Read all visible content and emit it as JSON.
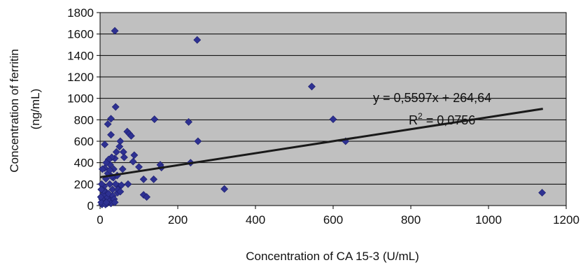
{
  "chart_data": {
    "type": "scatter",
    "xlabel": "Concentration of CA 15-3 (U/mL)",
    "ylabel_lines": [
      "Concentration of ferritin",
      "(ng/mL)"
    ],
    "xlim": [
      0,
      1200
    ],
    "ylim": [
      0,
      1800
    ],
    "x_ticks": [
      "0",
      "200",
      "400",
      "600",
      "800",
      "1000",
      "1200"
    ],
    "y_ticks": [
      "0",
      "200",
      "400",
      "600",
      "800",
      "1000",
      "1200",
      "1400",
      "1600",
      "1800"
    ],
    "grid": true,
    "marker_color": "#2e3192",
    "plot_bg": "#c0c0c0",
    "points": [
      {
        "x": 38,
        "y": 1630
      },
      {
        "x": 250,
        "y": 1545
      },
      {
        "x": 545,
        "y": 1110
      },
      {
        "x": 600,
        "y": 805
      },
      {
        "x": 632,
        "y": 600
      },
      {
        "x": 1138,
        "y": 120
      },
      {
        "x": 320,
        "y": 155
      },
      {
        "x": 252,
        "y": 600
      },
      {
        "x": 228,
        "y": 780
      },
      {
        "x": 233,
        "y": 400
      },
      {
        "x": 140,
        "y": 805
      },
      {
        "x": 155,
        "y": 380
      },
      {
        "x": 158,
        "y": 355
      },
      {
        "x": 138,
        "y": 245
      },
      {
        "x": 112,
        "y": 245
      },
      {
        "x": 112,
        "y": 100
      },
      {
        "x": 120,
        "y": 80
      },
      {
        "x": 100,
        "y": 360
      },
      {
        "x": 88,
        "y": 470
      },
      {
        "x": 85,
        "y": 410
      },
      {
        "x": 72,
        "y": 200
      },
      {
        "x": 70,
        "y": 690
      },
      {
        "x": 75,
        "y": 670
      },
      {
        "x": 80,
        "y": 650
      },
      {
        "x": 60,
        "y": 500
      },
      {
        "x": 62,
        "y": 450
      },
      {
        "x": 58,
        "y": 340
      },
      {
        "x": 52,
        "y": 600
      },
      {
        "x": 50,
        "y": 550
      },
      {
        "x": 48,
        "y": 180
      },
      {
        "x": 45,
        "y": 120
      },
      {
        "x": 42,
        "y": 500
      },
      {
        "x": 40,
        "y": 920
      },
      {
        "x": 38,
        "y": 440
      },
      {
        "x": 35,
        "y": 340
      },
      {
        "x": 34,
        "y": 260
      },
      {
        "x": 32,
        "y": 150
      },
      {
        "x": 30,
        "y": 450
      },
      {
        "x": 30,
        "y": 60
      },
      {
        "x": 28,
        "y": 810
      },
      {
        "x": 28,
        "y": 660
      },
      {
        "x": 26,
        "y": 380
      },
      {
        "x": 25,
        "y": 200
      },
      {
        "x": 22,
        "y": 430
      },
      {
        "x": 20,
        "y": 760
      },
      {
        "x": 20,
        "y": 300
      },
      {
        "x": 18,
        "y": 80
      },
      {
        "x": 16,
        "y": 400
      },
      {
        "x": 15,
        "y": 250
      },
      {
        "x": 14,
        "y": 130
      },
      {
        "x": 12,
        "y": 570
      },
      {
        "x": 12,
        "y": 350
      },
      {
        "x": 10,
        "y": 180
      },
      {
        "x": 10,
        "y": 40
      },
      {
        "x": 8,
        "y": 100
      },
      {
        "x": 7,
        "y": 20
      },
      {
        "x": 5,
        "y": 60
      },
      {
        "x": 5,
        "y": 10
      },
      {
        "x": 4,
        "y": 200
      },
      {
        "x": 3,
        "y": 30
      },
      {
        "x": 6,
        "y": 340
      },
      {
        "x": 9,
        "y": 140
      },
      {
        "x": 22,
        "y": 110
      },
      {
        "x": 24,
        "y": 40
      },
      {
        "x": 28,
        "y": 20
      },
      {
        "x": 33,
        "y": 90
      },
      {
        "x": 36,
        "y": 60
      },
      {
        "x": 40,
        "y": 200
      },
      {
        "x": 44,
        "y": 280
      },
      {
        "x": 46,
        "y": 150
      },
      {
        "x": 18,
        "y": 20
      },
      {
        "x": 14,
        "y": 10
      },
      {
        "x": 2,
        "y": 80
      },
      {
        "x": 3,
        "y": 150
      },
      {
        "x": 30,
        "y": 270
      },
      {
        "x": 25,
        "y": 330
      },
      {
        "x": 52,
        "y": 130
      },
      {
        "x": 55,
        "y": 190
      },
      {
        "x": 38,
        "y": 30
      },
      {
        "x": 16,
        "y": 30
      }
    ],
    "trendline": {
      "equation": "y = 0,5597x + 264,64",
      "r2_prefix": "R",
      "r2_exponent": "2",
      "r2_value": " = 0,0756",
      "slope": 0.5597,
      "intercept": 264.64,
      "x_range": [
        0,
        1140
      ],
      "color": "#1a1a1a"
    }
  }
}
